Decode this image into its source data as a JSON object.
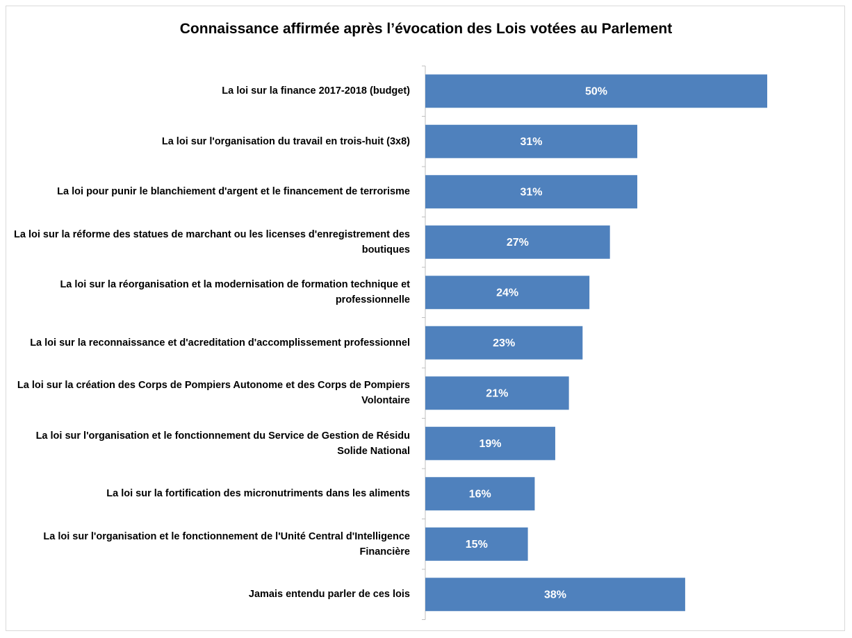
{
  "chart_data": {
    "type": "bar",
    "orientation": "horizontal",
    "title": "Connaissance affirmée après l’évocation des Lois votées au Parlement",
    "categories": [
      "La loi sur la finance 2017-2018 (budget)",
      "La loi sur l'organisation du travail en trois-huit (3x8)",
      "La loi pour punir le blanchiement d'argent et le financement de terrorisme",
      "La loi sur la réforme des statues de marchant ou les licenses d'enregistrement des boutiques",
      "La loi sur la réorganisation et la modernisation de formation technique et professionnelle",
      "La loi sur la reconnaissance et d'acreditation d'accomplissement professionnel",
      "La loi sur la création des Corps de Pompiers Autonome et des Corps de Pompiers Volontaire",
      "La loi sur l'organisation et le fonctionnement du Service de Gestion de Résidu Solide National",
      "La loi sur la fortification des micronutriments dans les aliments",
      "La loi sur l'organisation et le fonctionnement de l'Unité Central d'Intelligence Financière",
      "Jamais entendu parler de ces lois"
    ],
    "values": [
      50,
      31,
      31,
      27,
      24,
      23,
      21,
      19,
      16,
      15,
      38
    ],
    "value_labels": [
      "50%",
      "31%",
      "31%",
      "27%",
      "24%",
      "23%",
      "21%",
      "19%",
      "16%",
      "15%",
      "38%"
    ],
    "color": "#4f81bd",
    "xlim": [
      0,
      50
    ]
  }
}
